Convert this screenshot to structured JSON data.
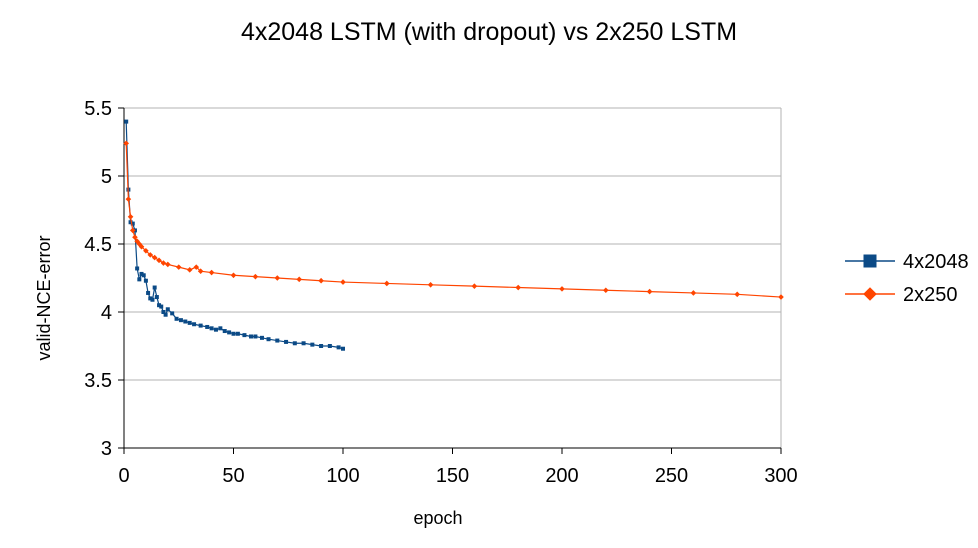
{
  "chart_data": {
    "type": "line",
    "title": "4x2048 LSTM (with dropout) vs 2x250 LSTM",
    "xlabel": "epoch",
    "ylabel": "valid-NCE-error",
    "xlim": [
      0,
      300
    ],
    "ylim": [
      3,
      5.5
    ],
    "x_ticks": [
      0,
      50,
      100,
      150,
      200,
      250,
      300
    ],
    "y_ticks": [
      3,
      3.5,
      4,
      4.5,
      5,
      5.5
    ],
    "y_tick_labels": [
      "3",
      "3.5",
      "4",
      "4.5",
      "5",
      "5.5"
    ],
    "grid": "horizontal",
    "legend_position": "right",
    "series": [
      {
        "name": "4x2048",
        "color": "#0b4a86",
        "marker": "square",
        "points": [
          [
            1,
            5.4
          ],
          [
            2,
            4.9
          ],
          [
            3,
            4.66
          ],
          [
            4,
            4.65
          ],
          [
            5,
            4.6
          ],
          [
            6,
            4.32
          ],
          [
            7,
            4.24
          ],
          [
            8,
            4.28
          ],
          [
            9,
            4.27
          ],
          [
            10,
            4.23
          ],
          [
            11,
            4.14
          ],
          [
            12,
            4.1
          ],
          [
            13,
            4.09
          ],
          [
            14,
            4.18
          ],
          [
            15,
            4.11
          ],
          [
            16,
            4.05
          ],
          [
            17,
            4.04
          ],
          [
            18,
            4.0
          ],
          [
            19,
            3.98
          ],
          [
            20,
            4.02
          ],
          [
            22,
            3.99
          ],
          [
            24,
            3.95
          ],
          [
            26,
            3.94
          ],
          [
            28,
            3.93
          ],
          [
            30,
            3.92
          ],
          [
            32,
            3.91
          ],
          [
            35,
            3.9
          ],
          [
            38,
            3.89
          ],
          [
            40,
            3.88
          ],
          [
            42,
            3.87
          ],
          [
            44,
            3.88
          ],
          [
            46,
            3.86
          ],
          [
            48,
            3.85
          ],
          [
            50,
            3.84
          ],
          [
            52,
            3.84
          ],
          [
            55,
            3.83
          ],
          [
            58,
            3.82
          ],
          [
            60,
            3.82
          ],
          [
            63,
            3.81
          ],
          [
            66,
            3.8
          ],
          [
            70,
            3.79
          ],
          [
            74,
            3.78
          ],
          [
            78,
            3.77
          ],
          [
            82,
            3.77
          ],
          [
            86,
            3.76
          ],
          [
            90,
            3.75
          ],
          [
            94,
            3.75
          ],
          [
            98,
            3.74
          ],
          [
            100,
            3.73
          ]
        ]
      },
      {
        "name": "2x250",
        "color": "#ff4500",
        "marker": "diamond",
        "points": [
          [
            1,
            5.24
          ],
          [
            2,
            4.83
          ],
          [
            3,
            4.7
          ],
          [
            4,
            4.6
          ],
          [
            5,
            4.55
          ],
          [
            6,
            4.52
          ],
          [
            7,
            4.5
          ],
          [
            8,
            4.48
          ],
          [
            10,
            4.45
          ],
          [
            12,
            4.42
          ],
          [
            14,
            4.4
          ],
          [
            16,
            4.38
          ],
          [
            18,
            4.36
          ],
          [
            20,
            4.35
          ],
          [
            25,
            4.33
          ],
          [
            30,
            4.31
          ],
          [
            33,
            4.33
          ],
          [
            35,
            4.3
          ],
          [
            40,
            4.29
          ],
          [
            50,
            4.27
          ],
          [
            60,
            4.26
          ],
          [
            70,
            4.25
          ],
          [
            80,
            4.24
          ],
          [
            90,
            4.23
          ],
          [
            100,
            4.22
          ],
          [
            120,
            4.21
          ],
          [
            140,
            4.2
          ],
          [
            160,
            4.19
          ],
          [
            180,
            4.18
          ],
          [
            200,
            4.17
          ],
          [
            220,
            4.16
          ],
          [
            240,
            4.15
          ],
          [
            260,
            4.14
          ],
          [
            280,
            4.13
          ],
          [
            300,
            4.11
          ]
        ]
      }
    ]
  }
}
